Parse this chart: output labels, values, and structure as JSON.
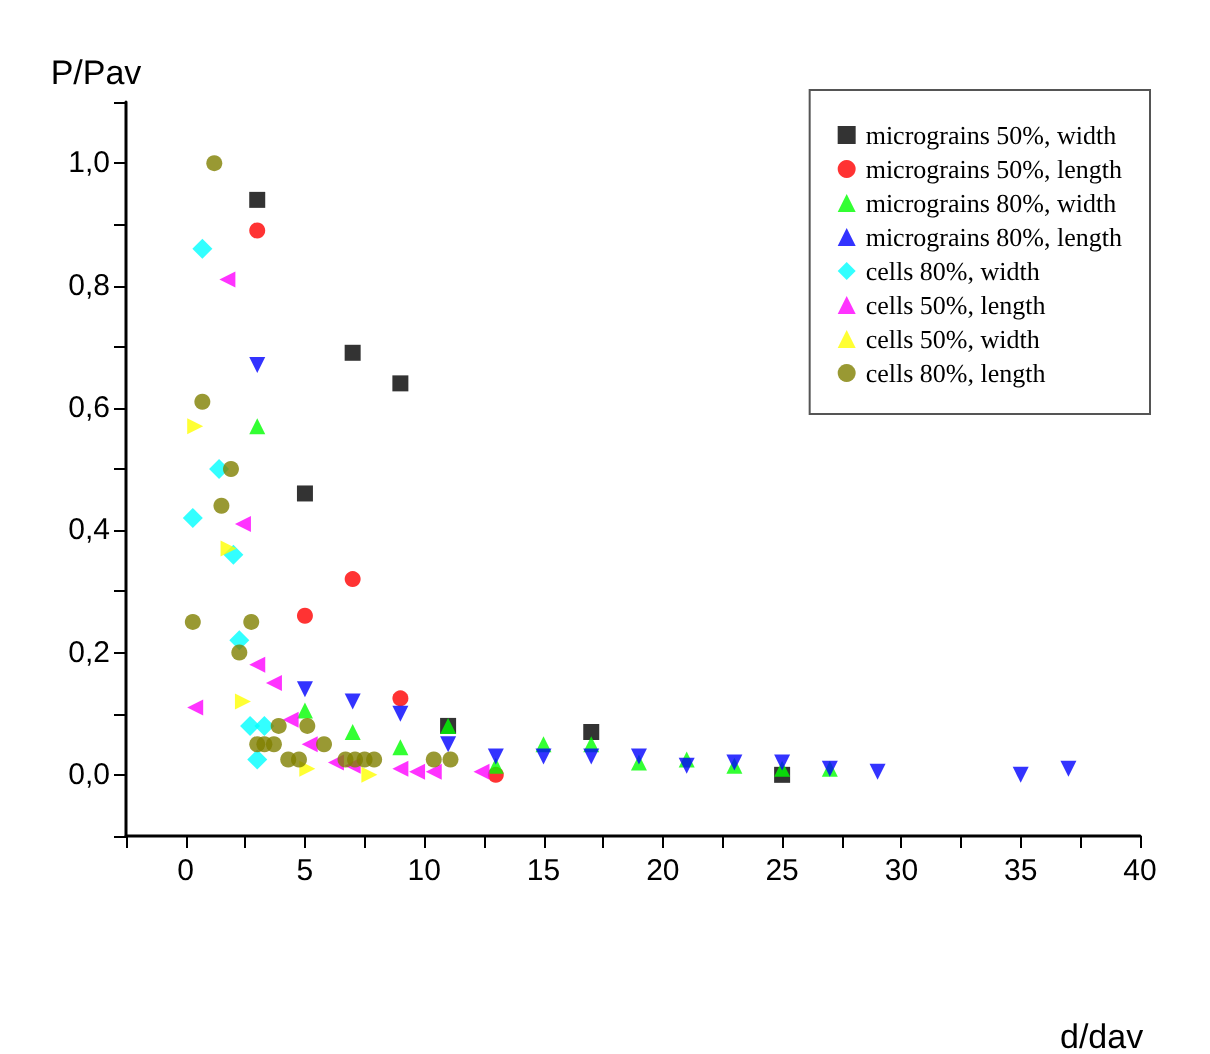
{
  "chart_data": {
    "type": "scatter",
    "xlabel": "d/dav",
    "ylabel": "P/Pav",
    "legend": "top right",
    "grid": false,
    "xlim": [
      -2.5,
      40
    ],
    "ylim": [
      -0.1,
      1.1
    ],
    "xticks": [
      {
        "value": -2.5,
        "label": null
      },
      0,
      {
        "value": 2.5,
        "label": null
      },
      5,
      {
        "value": 7.5,
        "label": null
      },
      10,
      {
        "value": 12.5,
        "label": null
      },
      15,
      {
        "value": 17.5,
        "label": null
      },
      20,
      {
        "value": 22.5,
        "label": null
      },
      25,
      {
        "value": 27.5,
        "label": null
      },
      30,
      {
        "value": 32.5,
        "label": null
      },
      35,
      {
        "value": 37.5,
        "label": null
      },
      40
    ],
    "yticks": [
      {
        "value": -0.1,
        "label": null
      },
      {
        "value": 0,
        "label": "0,0"
      },
      {
        "value": 0.1,
        "label": null
      },
      {
        "value": 0.2,
        "label": "0,2"
      },
      {
        "value": 0.3,
        "label": null
      },
      {
        "value": 0.4,
        "label": "0,4"
      },
      {
        "value": 0.5,
        "label": null
      },
      {
        "value": 0.6,
        "label": "0,6"
      },
      {
        "value": 0.7,
        "label": null
      },
      {
        "value": 0.8,
        "label": "0,8"
      },
      {
        "value": 0.9,
        "label": null
      },
      {
        "value": 1,
        "label": "1,0"
      },
      {
        "value": 1.1,
        "label": null
      }
    ],
    "series": [
      {
        "name": "micrograins 50%, width",
        "color": "#000000",
        "marker": "square",
        "x": [
          3,
          5,
          7,
          9,
          11,
          17,
          25
        ],
        "values": [
          0.94,
          0.46,
          0.69,
          0.64,
          0.08,
          0.07,
          0.0
        ]
      },
      {
        "name": "micrograins 50%, length",
        "color": "#ff0000",
        "marker": "circle",
        "x": [
          3,
          5,
          7,
          9,
          13
        ],
        "values": [
          0.89,
          0.26,
          0.32,
          0.125,
          0.0
        ]
      },
      {
        "name": "micrograins 80%, width",
        "color": "#00ff00",
        "marker": "triangle",
        "x": [
          3,
          5,
          7,
          9,
          11,
          13,
          15,
          17,
          19,
          21,
          23,
          25,
          27
        ],
        "values": [
          0.57,
          0.105,
          0.07,
          0.045,
          0.08,
          0.015,
          0.05,
          0.05,
          0.02,
          0.025,
          0.015,
          0.01,
          0.01
        ]
      },
      {
        "name": "micrograins 80%, length",
        "color": "#0000ff",
        "marker": "triangle-down",
        "x": [
          3,
          5,
          7,
          9,
          11,
          13,
          15,
          17,
          19,
          21,
          23,
          25,
          27,
          29,
          35,
          37
        ],
        "values": [
          0.67,
          0.14,
          0.12,
          0.1,
          0.05,
          0.03,
          0.03,
          0.03,
          0.03,
          0.015,
          0.02,
          0.02,
          0.01,
          0.005,
          0.0,
          0.01
        ]
      },
      {
        "name": "cells 80%, width",
        "color": "#00ffff",
        "marker": "diamond",
        "x": [
          0.7,
          0.3,
          1.4,
          2.0,
          2.25,
          2.7,
          3.3,
          3.0
        ],
        "values": [
          0.86,
          0.42,
          0.5,
          0.36,
          0.22,
          0.08,
          0.08,
          0.025
        ]
      },
      {
        "name": "cells 50%, length",
        "color": "#ff00ff",
        "marker": "triangle-left",
        "x": [
          0.4,
          1.75,
          2.4,
          3,
          3.7,
          4.4,
          5.2,
          6.3,
          7,
          9,
          9.7,
          10.4,
          12.4
        ],
        "values": [
          0.11,
          0.81,
          0.41,
          0.18,
          0.15,
          0.09,
          0.05,
          0.02,
          0.015,
          0.01,
          0.005,
          0.005,
          0.005
        ]
      },
      {
        "name": "cells 50%, width",
        "color": "#ffff00",
        "marker": "triangle-right",
        "x": [
          0.4,
          1.8,
          2.4,
          5.1,
          7.7
        ],
        "values": [
          0.57,
          0.37,
          0.12,
          0.01,
          0.0
        ]
      },
      {
        "name": "cells 80%, length",
        "color": "#808000",
        "marker": "circle",
        "x": [
          1.2,
          0.7,
          1.9,
          1.5,
          0.3,
          2.75,
          2.25,
          3,
          3.3,
          3.7,
          3.9,
          4.3,
          4.75,
          5.1,
          5.8,
          6.7,
          7.1,
          7.5,
          7.9,
          10.4,
          11.1
        ],
        "values": [
          1.0,
          0.61,
          0.5,
          0.44,
          0.25,
          0.25,
          0.2,
          0.05,
          0.05,
          0.05,
          0.08,
          0.025,
          0.025,
          0.08,
          0.05,
          0.025,
          0.025,
          0.025,
          0.025,
          0.025,
          0.025
        ]
      }
    ]
  }
}
